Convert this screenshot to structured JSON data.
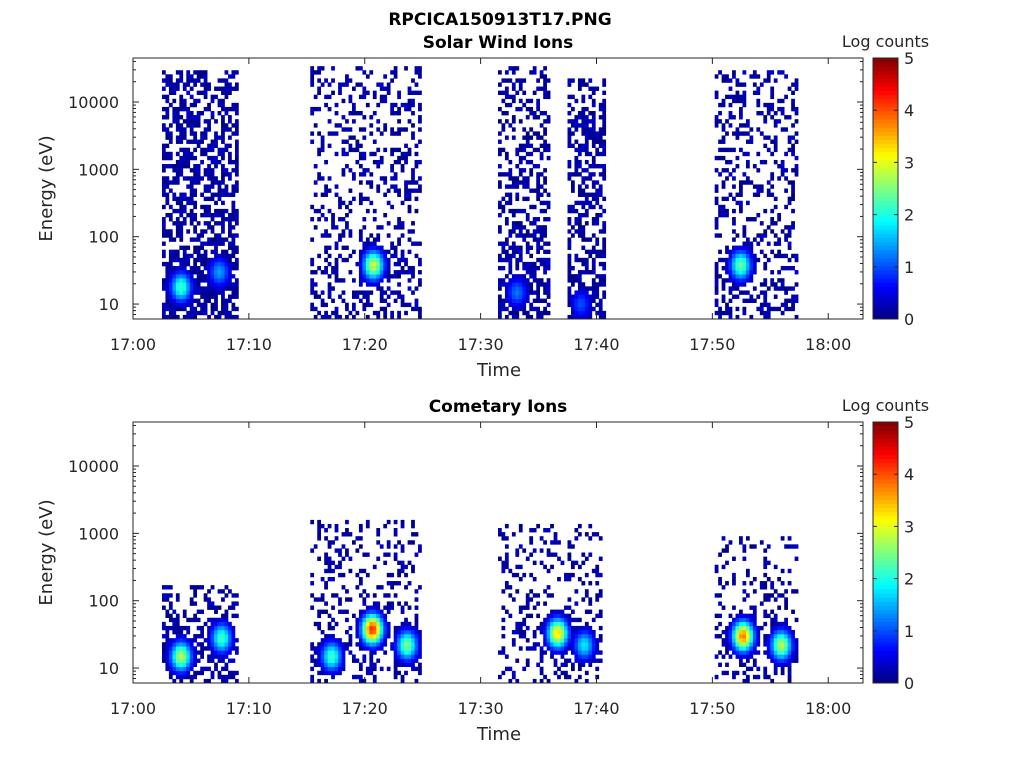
{
  "figure_title": "RPCICA150913T17.PNG",
  "chart_data": [
    {
      "type": "heatmap",
      "title": "Solar Wind Ions",
      "xlabel": "Time",
      "ylabel": "Energy (eV)",
      "x_tick_labels": [
        "17:00",
        "17:10",
        "17:20",
        "17:30",
        "17:40",
        "17:50",
        "18:00"
      ],
      "xlim": [
        "17:00",
        "18:03"
      ],
      "y_scale": "log",
      "ylim": [
        6,
        45000
      ],
      "y_tick_labels": [
        "10",
        "100",
        "1000",
        "10000"
      ],
      "y_tick_values": [
        10,
        100,
        1000,
        10000
      ],
      "grid": false,
      "colormap": "jet",
      "colorbar": {
        "label": "Log counts",
        "range": [
          0,
          5
        ],
        "tick_labels": [
          "0",
          "1",
          "2",
          "3",
          "4",
          "5"
        ]
      },
      "bursts": [
        {
          "start": "17:02.5",
          "end": "17:08.8",
          "e_min": 6,
          "e_max": 30000,
          "density": 0.72,
          "peaks": [
            {
              "time": "17:04.0",
              "energy": 18,
              "value": 2.2
            },
            {
              "time": "17:07.3",
              "energy": 30,
              "value": 1.4
            }
          ]
        },
        {
          "start": "17:15.3",
          "end": "17:24.7",
          "e_min": 6,
          "e_max": 32000,
          "density": 0.35,
          "peaks": [
            {
              "time": "17:20.6",
              "energy": 38,
              "value": 2.9
            }
          ]
        },
        {
          "start": "17:31.5",
          "end": "17:35.9",
          "e_min": 6,
          "e_max": 33000,
          "density": 0.55,
          "peaks": [
            {
              "time": "17:33.0",
              "energy": 15,
              "value": 1.2
            }
          ]
        },
        {
          "start": "17:37.5",
          "end": "17:40.6",
          "e_min": 6,
          "e_max": 24000,
          "density": 0.6,
          "peaks": [
            {
              "time": "17:38.5",
              "energy": 10,
              "value": 1.0
            }
          ]
        },
        {
          "start": "17:50.2",
          "end": "17:57.2",
          "e_min": 6,
          "e_max": 28000,
          "density": 0.4,
          "peaks": [
            {
              "time": "17:52.3",
              "energy": 38,
              "value": 2.4
            }
          ]
        }
      ]
    },
    {
      "type": "heatmap",
      "title": "Cometary Ions",
      "xlabel": "Time",
      "ylabel": "Energy (eV)",
      "x_tick_labels": [
        "17:00",
        "17:10",
        "17:20",
        "17:30",
        "17:40",
        "17:50",
        "18:00"
      ],
      "xlim": [
        "17:00",
        "18:03"
      ],
      "y_scale": "log",
      "ylim": [
        6,
        45000
      ],
      "y_tick_labels": [
        "10",
        "100",
        "1000",
        "10000"
      ],
      "y_tick_values": [
        10,
        100,
        1000,
        10000
      ],
      "grid": false,
      "colormap": "jet",
      "colorbar": {
        "label": "Log counts",
        "range": [
          0,
          5
        ],
        "tick_labels": [
          "0",
          "1",
          "2",
          "3",
          "4",
          "5"
        ]
      },
      "bursts": [
        {
          "start": "17:02.5",
          "end": "17:08.8",
          "e_min": 6,
          "e_max": 180,
          "density": 0.45,
          "peaks": [
            {
              "time": "17:04.0",
              "energy": 15,
              "value": 2.8
            },
            {
              "time": "17:07.5",
              "energy": 28,
              "value": 2.2
            }
          ]
        },
        {
          "start": "17:15.3",
          "end": "17:24.7",
          "e_min": 6,
          "e_max": 1500,
          "density": 0.3,
          "peaks": [
            {
              "time": "17:17.0",
              "energy": 15,
              "value": 2.2
            },
            {
              "time": "17:20.5",
              "energy": 38,
              "value": 4.2
            },
            {
              "time": "17:23.5",
              "energy": 22,
              "value": 2.5
            }
          ]
        },
        {
          "start": "17:31.5",
          "end": "17:40.3",
          "e_min": 6,
          "e_max": 1400,
          "density": 0.28,
          "peaks": [
            {
              "time": "17:36.5",
              "energy": 33,
              "value": 3.3
            },
            {
              "time": "17:38.8",
              "energy": 22,
              "value": 1.8
            }
          ]
        },
        {
          "start": "17:50.2",
          "end": "17:57.2",
          "e_min": 6,
          "e_max": 900,
          "density": 0.3,
          "peaks": [
            {
              "time": "17:52.5",
              "energy": 30,
              "value": 3.8
            },
            {
              "time": "17:55.8",
              "energy": 22,
              "value": 2.8
            }
          ]
        }
      ]
    }
  ]
}
